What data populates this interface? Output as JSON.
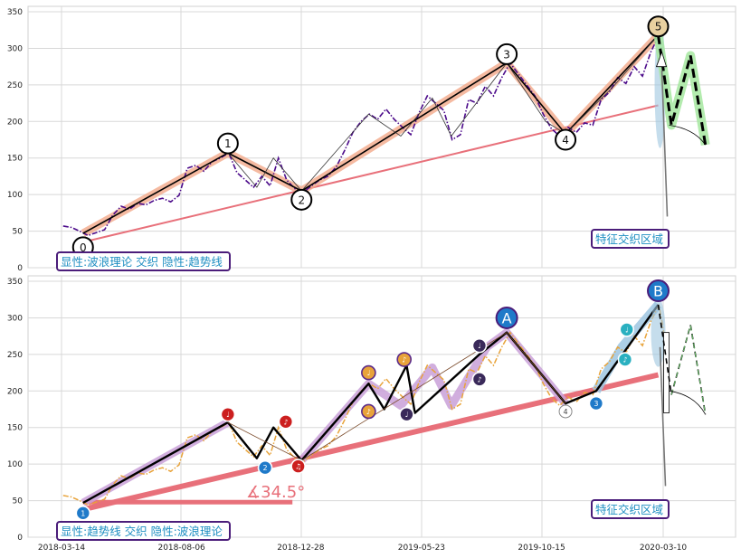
{
  "chart_data": [
    {
      "type": "line",
      "panel": "top",
      "ylim": [
        0,
        355
      ],
      "yticks": [
        0,
        50,
        100,
        150,
        200,
        250,
        300,
        350
      ],
      "grid": true,
      "price_series": [
        [
          "2018-03-16",
          57
        ],
        [
          "2018-03-26",
          55
        ],
        [
          "2018-04-05",
          50
        ],
        [
          "2018-04-15",
          44
        ],
        [
          "2018-04-25",
          48
        ],
        [
          "2018-05-05",
          52
        ],
        [
          "2018-05-15",
          72
        ],
        [
          "2018-05-25",
          84
        ],
        [
          "2018-06-04",
          80
        ],
        [
          "2018-06-14",
          88
        ],
        [
          "2018-06-24",
          86
        ],
        [
          "2018-07-04",
          92
        ],
        [
          "2018-07-14",
          95
        ],
        [
          "2018-07-24",
          90
        ],
        [
          "2018-08-03",
          99
        ],
        [
          "2018-08-13",
          136
        ],
        [
          "2018-08-23",
          140
        ],
        [
          "2018-09-02",
          132
        ],
        [
          "2018-09-12",
          145
        ],
        [
          "2018-09-22",
          150
        ],
        [
          "2018-10-02",
          157
        ],
        [
          "2018-10-12",
          130
        ],
        [
          "2018-10-22",
          120
        ],
        [
          "2018-11-01",
          110
        ],
        [
          "2018-11-11",
          125
        ],
        [
          "2018-11-21",
          112
        ],
        [
          "2018-12-01",
          150
        ],
        [
          "2018-12-11",
          120
        ],
        [
          "2018-12-21",
          108
        ],
        [
          "2018-12-31",
          103
        ],
        [
          "2019-01-10",
          112
        ],
        [
          "2019-01-20",
          120
        ],
        [
          "2019-01-30",
          125
        ],
        [
          "2019-02-09",
          138
        ],
        [
          "2019-02-19",
          160
        ],
        [
          "2019-03-01",
          185
        ],
        [
          "2019-03-11",
          200
        ],
        [
          "2019-03-21",
          210
        ],
        [
          "2019-03-31",
          203
        ],
        [
          "2019-04-10",
          217
        ],
        [
          "2019-04-20",
          203
        ],
        [
          "2019-04-30",
          192
        ],
        [
          "2019-05-10",
          182
        ],
        [
          "2019-05-20",
          212
        ],
        [
          "2019-05-30",
          235
        ],
        [
          "2019-06-09",
          225
        ],
        [
          "2019-06-19",
          215
        ],
        [
          "2019-06-29",
          175
        ],
        [
          "2019-07-09",
          182
        ],
        [
          "2019-07-19",
          230
        ],
        [
          "2019-07-29",
          225
        ],
        [
          "2019-08-08",
          248
        ],
        [
          "2019-08-18",
          235
        ],
        [
          "2019-08-28",
          260
        ],
        [
          "2019-09-07",
          280
        ],
        [
          "2019-09-17",
          265
        ],
        [
          "2019-09-27",
          250
        ],
        [
          "2019-10-07",
          235
        ],
        [
          "2019-10-17",
          210
        ],
        [
          "2019-10-27",
          190
        ],
        [
          "2019-11-06",
          180
        ],
        [
          "2019-11-16",
          192
        ],
        [
          "2019-11-26",
          185
        ],
        [
          "2019-12-06",
          198
        ],
        [
          "2019-12-16",
          195
        ],
        [
          "2019-12-26",
          230
        ],
        [
          "2020-01-05",
          240
        ],
        [
          "2020-01-15",
          260
        ],
        [
          "2020-01-25",
          252
        ],
        [
          "2020-02-04",
          275
        ],
        [
          "2020-02-14",
          262
        ],
        [
          "2020-02-24",
          295
        ],
        [
          "2020-03-05",
          318
        ],
        [
          "2020-03-12",
          272
        ]
      ],
      "wave_points": [
        {
          "label": "0",
          "date": "2018-04-09",
          "value": 47,
          "marker_value": 28
        },
        {
          "label": "1",
          "date": "2018-10-01",
          "value": 157,
          "marker_value": 170
        },
        {
          "label": "2",
          "date": "2018-12-29",
          "value": 105,
          "marker_value": 93
        },
        {
          "label": "3",
          "date": "2019-09-03",
          "value": 280,
          "marker_value": 292
        },
        {
          "label": "4",
          "date": "2019-11-13",
          "value": 183,
          "marker_value": 175
        },
        {
          "label": "5",
          "date": "2020-03-04",
          "value": 318,
          "marker_value": 330
        }
      ],
      "trend_line": [
        [
          "2018-04-09",
          35
        ],
        [
          "2020-03-04",
          222
        ]
      ],
      "projection": [
        [
          "2020-03-04",
          318
        ],
        [
          "2020-03-20",
          195
        ],
        [
          "2020-04-12",
          290
        ],
        [
          "2020-04-30",
          168
        ]
      ],
      "legend_text": "显性:波浪理论 交织 隐性:趋势线",
      "zone_text": "特征交织区域"
    },
    {
      "type": "line",
      "panel": "bottom",
      "ylim": [
        0,
        355
      ],
      "yticks": [
        0,
        50,
        100,
        150,
        200,
        250,
        300,
        350
      ],
      "grid": true,
      "xticks": [
        "2018-03-14",
        "2018-08-06",
        "2018-12-28",
        "2019-05-23",
        "2019-10-15",
        "2020-03-10"
      ],
      "wave_points": [
        {
          "label": "A",
          "date": "2019-09-03",
          "value": 280,
          "marker_value": 300
        },
        {
          "label": "B",
          "date": "2020-03-04",
          "value": 318,
          "marker_value": 337
        },
        {
          "label": "4",
          "date": "2019-11-13",
          "value": 183,
          "marker_value": 172
        }
      ],
      "trend_line": [
        [
          "2018-04-09",
          38
        ],
        [
          "2020-03-04",
          222
        ]
      ],
      "angle_text": "∡34.5°",
      "legend_text": "显性:趋势线 交织 隐性:波浪理论",
      "zone_text": "特征交织区域",
      "colors": {
        "trend": "#e8707a",
        "price": "#e8a33a",
        "highlight": "#c9a0d8",
        "projection_zone": "#9ec6e0"
      }
    }
  ]
}
